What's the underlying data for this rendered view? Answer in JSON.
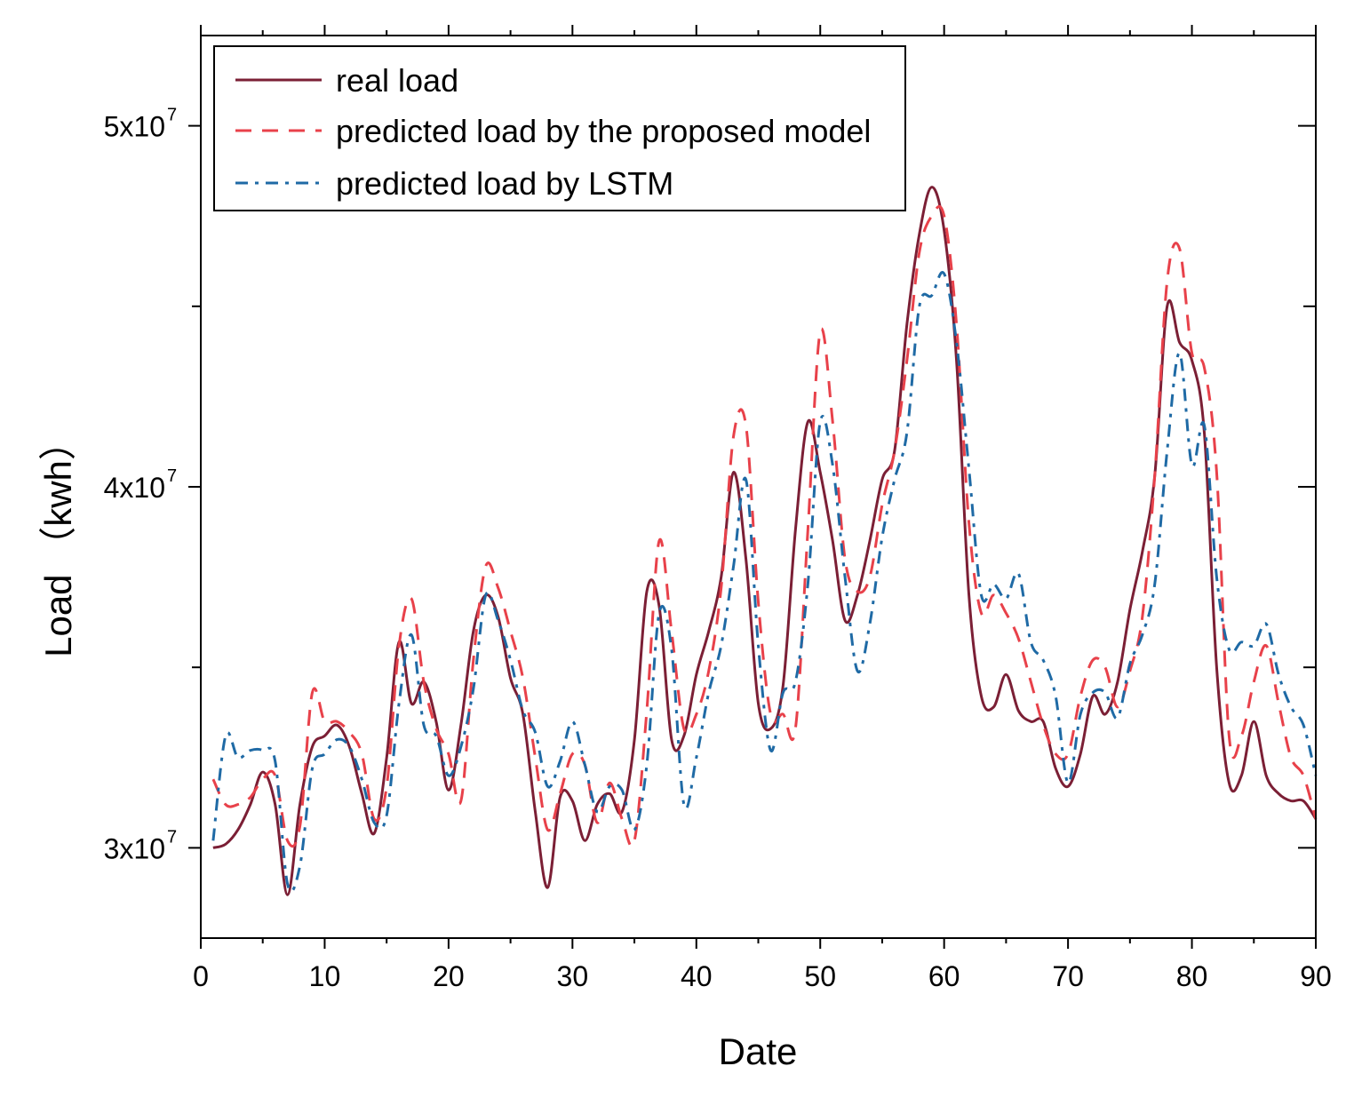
{
  "chart_data": {
    "type": "line",
    "title": "",
    "xlabel": "Date",
    "ylabel": "Load （kwh）",
    "xlim": [
      0,
      90
    ],
    "ylim": [
      27500000,
      52500000
    ],
    "x_ticks": [
      0,
      10,
      20,
      30,
      40,
      50,
      60,
      70,
      80,
      90
    ],
    "x_tick_labels": [
      "0",
      "10",
      "20",
      "30",
      "40",
      "50",
      "60",
      "70",
      "80",
      "90"
    ],
    "y_ticks": [
      30000000,
      40000000,
      50000000
    ],
    "y_tick_labels": [
      {
        "base": "3x10",
        "exp": "7"
      },
      {
        "base": "4x10",
        "exp": "7"
      },
      {
        "base": "5x10",
        "exp": "7"
      }
    ],
    "y_minor_ticks": [
      35000000,
      45000000
    ],
    "grid": false,
    "legend_position": "top-left",
    "series": [
      {
        "name": "real load",
        "color": "#7b1f35",
        "dash": "solid",
        "x": [
          1,
          2,
          3,
          4,
          5,
          6,
          7,
          8,
          9,
          10,
          11,
          12,
          13,
          14,
          15,
          16,
          17,
          18,
          19,
          20,
          21,
          22,
          23,
          24,
          25,
          26,
          27,
          28,
          29,
          30,
          31,
          32,
          33,
          34,
          35,
          36,
          37,
          38,
          39,
          40,
          41,
          42,
          43,
          44,
          45,
          46,
          47,
          48,
          49,
          50,
          51,
          52,
          53,
          54,
          55,
          56,
          57,
          58,
          59,
          60,
          61,
          62,
          63,
          64,
          65,
          66,
          67,
          68,
          69,
          70,
          71,
          72,
          73,
          74,
          75,
          76,
          77,
          78,
          79,
          80,
          81,
          82,
          83,
          84,
          85,
          86,
          87,
          88,
          89,
          90
        ],
        "values": [
          30.0,
          30.1,
          30.5,
          31.2,
          32.1,
          31.2,
          28.7,
          31.2,
          32.8,
          33.1,
          33.4,
          32.8,
          31.5,
          30.4,
          32.5,
          35.7,
          34.0,
          34.6,
          33.5,
          31.6,
          33.4,
          36.0,
          37.0,
          36.4,
          34.7,
          33.7,
          31.0,
          28.9,
          31.4,
          31.3,
          30.2,
          31.2,
          31.5,
          31.0,
          33.0,
          37.1,
          36.7,
          33.0,
          33.1,
          34.8,
          36.0,
          37.5,
          40.4,
          38.0,
          34.0,
          33.3,
          34.5,
          38.8,
          41.8,
          40.4,
          38.5,
          36.3,
          37.0,
          38.5,
          40.2,
          41.0,
          44.5,
          47.0,
          48.3,
          47.1,
          43.5,
          37.0,
          34.2,
          33.9,
          34.8,
          33.8,
          33.5,
          33.5,
          32.2,
          31.7,
          32.6,
          34.2,
          33.7,
          34.6,
          36.6,
          38.2,
          40.3,
          45.0,
          44.0,
          43.5,
          41.5,
          35.0,
          31.8,
          32.0,
          33.5,
          32.0,
          31.5,
          31.3,
          31.3,
          30.8
        ]
      },
      {
        "name": "predicted load by the proposed model",
        "color": "#e8414a",
        "dash": "dashed",
        "x": [
          1,
          2,
          3,
          4,
          5,
          6,
          7,
          8,
          9,
          10,
          11,
          12,
          13,
          14,
          15,
          16,
          17,
          18,
          19,
          20,
          21,
          22,
          23,
          24,
          25,
          26,
          27,
          28,
          29,
          30,
          31,
          32,
          33,
          34,
          35,
          36,
          37,
          38,
          39,
          40,
          41,
          42,
          43,
          44,
          45,
          46,
          47,
          48,
          49,
          50,
          51,
          52,
          53,
          54,
          55,
          56,
          57,
          58,
          59,
          60,
          61,
          62,
          63,
          64,
          65,
          66,
          67,
          68,
          69,
          70,
          71,
          72,
          73,
          74,
          75,
          76,
          77,
          78,
          79,
          80,
          81,
          82,
          83,
          84,
          85,
          86,
          87,
          88,
          89,
          90
        ],
        "values": [
          31.9,
          31.2,
          31.2,
          31.4,
          31.9,
          32.0,
          30.2,
          30.6,
          34.3,
          33.5,
          33.5,
          33.2,
          32.6,
          30.8,
          31.7,
          35.6,
          36.9,
          34.6,
          33.3,
          32.6,
          31.3,
          35.2,
          37.8,
          37.2,
          36.0,
          34.7,
          32.5,
          30.5,
          31.5,
          32.6,
          32.3,
          30.7,
          31.8,
          30.8,
          30.2,
          33.8,
          38.5,
          36.0,
          33.3,
          33.7,
          34.9,
          37.2,
          41.4,
          41.7,
          36.8,
          33.7,
          33.7,
          33.3,
          38.8,
          44.3,
          41.8,
          38.0,
          37.1,
          37.5,
          39.5,
          41.0,
          43.5,
          46.5,
          47.5,
          47.5,
          44.5,
          39.0,
          36.5,
          37.0,
          36.5,
          35.8,
          34.6,
          33.4,
          32.6,
          32.6,
          34.2,
          35.2,
          35.0,
          33.9,
          34.9,
          36.4,
          40.3,
          45.7,
          46.6,
          43.7,
          43.3,
          40.4,
          33.1,
          33.1,
          34.6,
          35.6,
          34.0,
          32.5,
          32.0,
          30.8
        ]
      },
      {
        "name": "predicted load by LSTM",
        "color": "#1f6aa5",
        "dash": "dashdot",
        "x": [
          1,
          2,
          3,
          4,
          5,
          6,
          7,
          8,
          9,
          10,
          11,
          12,
          13,
          14,
          15,
          16,
          17,
          18,
          19,
          20,
          21,
          22,
          23,
          24,
          25,
          26,
          27,
          28,
          29,
          30,
          31,
          32,
          33,
          34,
          35,
          36,
          37,
          38,
          39,
          40,
          41,
          42,
          43,
          44,
          45,
          46,
          47,
          48,
          49,
          50,
          51,
          52,
          53,
          54,
          55,
          56,
          57,
          58,
          59,
          60,
          61,
          62,
          63,
          64,
          65,
          66,
          67,
          68,
          69,
          70,
          71,
          72,
          73,
          74,
          75,
          76,
          77,
          78,
          79,
          80,
          81,
          82,
          83,
          84,
          85,
          86,
          87,
          88,
          89,
          90
        ],
        "values": [
          30.2,
          33.1,
          32.5,
          32.7,
          32.7,
          32.4,
          29.0,
          29.5,
          32.2,
          32.6,
          33.0,
          32.8,
          31.9,
          30.7,
          30.9,
          34.0,
          35.9,
          33.4,
          33.1,
          32.0,
          32.8,
          34.4,
          37.0,
          36.3,
          35.2,
          33.8,
          33.2,
          31.7,
          32.4,
          33.5,
          32.3,
          31.0,
          31.7,
          31.6,
          30.5,
          32.3,
          36.5,
          35.5,
          31.2,
          32.5,
          34.3,
          35.6,
          37.8,
          40.2,
          35.6,
          32.7,
          34.3,
          34.6,
          37.3,
          41.8,
          40.6,
          37.5,
          34.9,
          36.2,
          38.6,
          40.2,
          41.5,
          45.0,
          45.3,
          45.9,
          44.0,
          40.5,
          37.0,
          37.3,
          36.9,
          37.6,
          35.7,
          35.2,
          34.2,
          31.8,
          33.7,
          34.3,
          34.3,
          33.6,
          35.1,
          35.9,
          37.3,
          41.0,
          43.7,
          40.6,
          41.7,
          37.5,
          35.5,
          35.7,
          35.6,
          36.2,
          34.8,
          33.9,
          33.4,
          32.0
        ]
      }
    ]
  }
}
